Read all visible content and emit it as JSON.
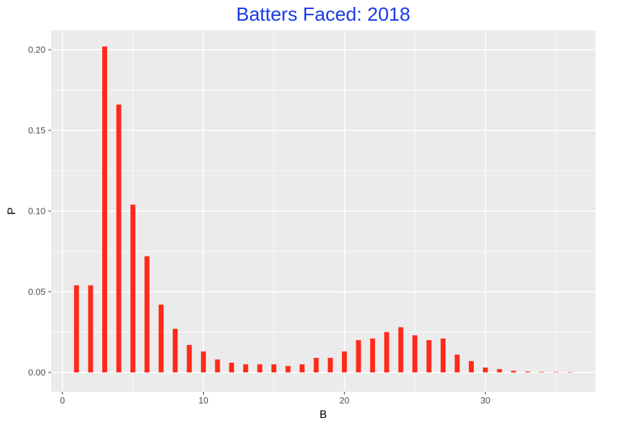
{
  "chart_data": {
    "type": "bar",
    "title": "Batters Faced: 2018",
    "xlabel": "B",
    "ylabel": "P",
    "xlim": [
      -0.8,
      37.8
    ],
    "ylim": [
      -0.012,
      0.212
    ],
    "x_ticks": [
      0,
      10,
      20,
      30
    ],
    "x_tick_labels": [
      "0",
      "10",
      "20",
      "30"
    ],
    "y_ticks": [
      0,
      0.05,
      0.1,
      0.15,
      0.2
    ],
    "y_tick_labels": [
      "0.00",
      "0.05",
      "0.10",
      "0.15",
      "0.20"
    ],
    "grid": true,
    "legend": "none",
    "x": [
      1,
      2,
      3,
      4,
      5,
      6,
      7,
      8,
      9,
      10,
      11,
      12,
      13,
      14,
      15,
      16,
      17,
      18,
      19,
      20,
      21,
      22,
      23,
      24,
      25,
      26,
      27,
      28,
      29,
      30,
      31,
      32,
      33,
      34,
      35,
      36
    ],
    "values": [
      0.054,
      0.054,
      0.202,
      0.166,
      0.104,
      0.072,
      0.042,
      0.027,
      0.017,
      0.013,
      0.008,
      0.006,
      0.005,
      0.005,
      0.005,
      0.004,
      0.005,
      0.009,
      0.009,
      0.013,
      0.02,
      0.021,
      0.025,
      0.028,
      0.023,
      0.02,
      0.021,
      0.011,
      0.007,
      0.003,
      0.002,
      0.001,
      0.0005,
      0.0003,
      0.0002,
      0.0001
    ]
  },
  "colors": {
    "bar": "#ff2a1a",
    "panel": "#ebebeb",
    "grid": "#ffffff",
    "title": "#1a3ae6"
  }
}
